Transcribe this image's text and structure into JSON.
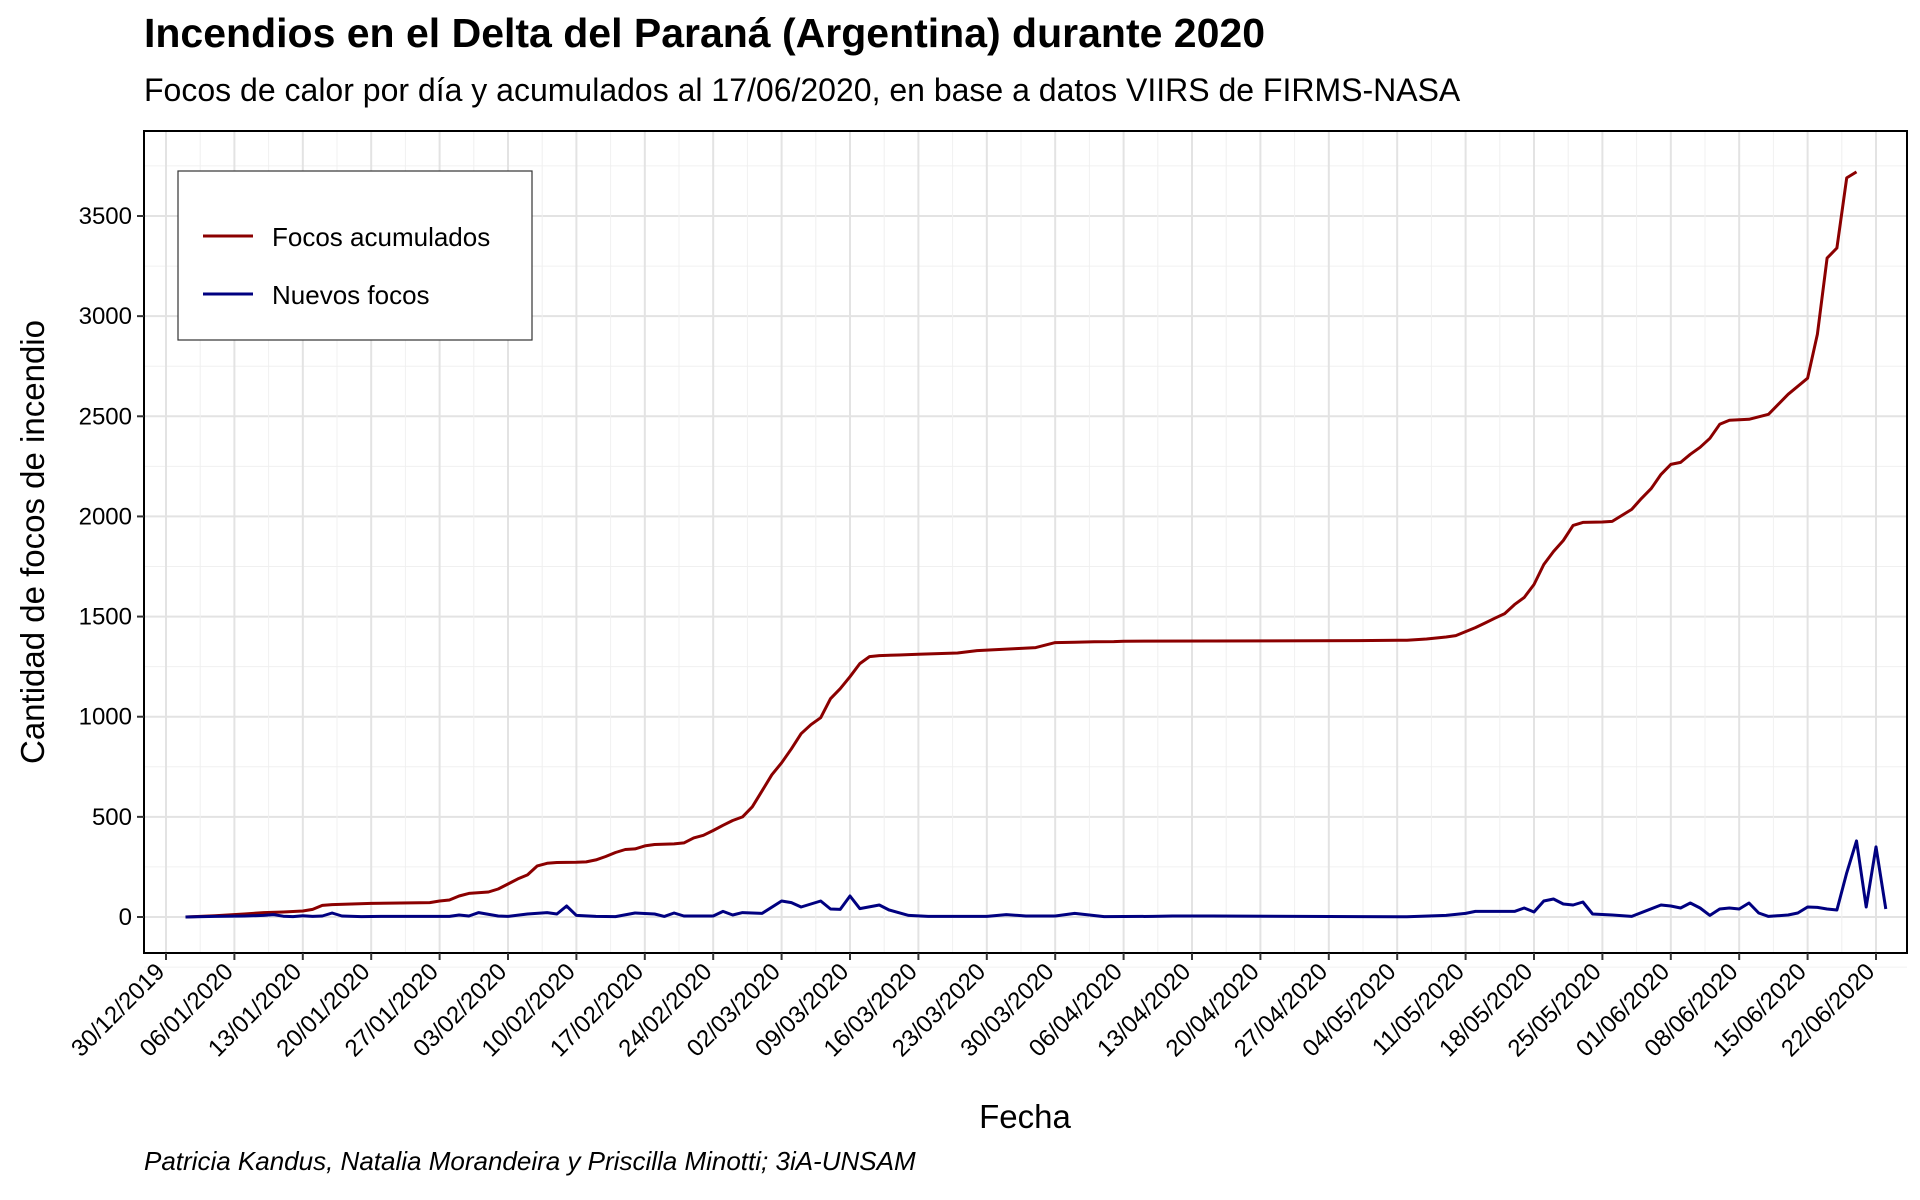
{
  "chart_data": {
    "type": "line",
    "title": "Incendios en el Delta del Paraná (Argentina) durante 2020",
    "subtitle": "Focos de calor por día y acumulados al 17/06/2020, en base a datos VIIRS de FIRMS-NASA",
    "caption": "Patricia Kandus, Natalia Morandeira y Priscilla Minotti; 3iA-UNSAM",
    "xlabel": "Fecha",
    "ylabel": "Cantidad de focos de incendio",
    "xlim": [
      "2019-12-30",
      "2020-06-22"
    ],
    "ylim": [
      -180,
      3830
    ],
    "x_ticks": [
      "30/12/2019",
      "06/01/2020",
      "13/01/2020",
      "20/01/2020",
      "27/01/2020",
      "03/02/2020",
      "10/02/2020",
      "17/02/2020",
      "24/02/2020",
      "02/03/2020",
      "09/03/2020",
      "16/03/2020",
      "23/03/2020",
      "30/03/2020",
      "06/04/2020",
      "13/04/2020",
      "20/04/2020",
      "27/04/2020",
      "04/05/2020",
      "11/05/2020",
      "18/05/2020",
      "25/05/2020",
      "01/06/2020",
      "08/06/2020",
      "15/06/2020",
      "22/06/2020"
    ],
    "y_ticks": [
      0,
      500,
      1000,
      1500,
      2000,
      2500,
      3000,
      3500
    ],
    "grid": true,
    "legend_position": "top-left",
    "series": [
      {
        "name": "Focos acumulados",
        "color": "#8b0000",
        "points": [
          [
            "2020-01-01",
            0
          ],
          [
            "2020-01-04",
            6
          ],
          [
            "2020-01-07",
            15
          ],
          [
            "2020-01-09",
            22
          ],
          [
            "2020-01-11",
            25
          ],
          [
            "2020-01-13",
            30
          ],
          [
            "2020-01-14",
            38
          ],
          [
            "2020-01-15",
            58
          ],
          [
            "2020-01-16",
            62
          ],
          [
            "2020-01-18",
            65
          ],
          [
            "2020-01-20",
            68
          ],
          [
            "2020-01-23",
            70
          ],
          [
            "2020-01-26",
            72
          ],
          [
            "2020-01-27",
            80
          ],
          [
            "2020-01-28",
            85
          ],
          [
            "2020-01-29",
            105
          ],
          [
            "2020-01-30",
            118
          ],
          [
            "2020-02-01",
            125
          ],
          [
            "2020-02-02",
            140
          ],
          [
            "2020-02-03",
            165
          ],
          [
            "2020-02-04",
            190
          ],
          [
            "2020-02-05",
            210
          ],
          [
            "2020-02-06",
            255
          ],
          [
            "2020-02-07",
            268
          ],
          [
            "2020-02-08",
            272
          ],
          [
            "2020-02-10",
            273
          ],
          [
            "2020-02-11",
            275
          ],
          [
            "2020-02-12",
            285
          ],
          [
            "2020-02-13",
            302
          ],
          [
            "2020-02-14",
            322
          ],
          [
            "2020-02-15",
            337
          ],
          [
            "2020-02-16",
            340
          ],
          [
            "2020-02-17",
            355
          ],
          [
            "2020-02-18",
            362
          ],
          [
            "2020-02-20",
            365
          ],
          [
            "2020-02-21",
            370
          ],
          [
            "2020-02-22",
            395
          ],
          [
            "2020-02-23",
            408
          ],
          [
            "2020-02-24",
            432
          ],
          [
            "2020-02-25",
            458
          ],
          [
            "2020-02-26",
            482
          ],
          [
            "2020-02-27",
            500
          ],
          [
            "2020-02-28",
            550
          ],
          [
            "2020-02-29",
            630
          ],
          [
            "2020-03-01",
            710
          ],
          [
            "2020-03-02",
            770
          ],
          [
            "2020-03-03",
            840
          ],
          [
            "2020-03-04",
            915
          ],
          [
            "2020-03-05",
            960
          ],
          [
            "2020-03-06",
            995
          ],
          [
            "2020-03-07",
            1090
          ],
          [
            "2020-03-08",
            1140
          ],
          [
            "2020-03-09",
            1200
          ],
          [
            "2020-03-10",
            1265
          ],
          [
            "2020-03-11",
            1300
          ],
          [
            "2020-03-12",
            1305
          ],
          [
            "2020-03-14",
            1308
          ],
          [
            "2020-03-16",
            1312
          ],
          [
            "2020-03-18",
            1315
          ],
          [
            "2020-03-20",
            1318
          ],
          [
            "2020-03-22",
            1330
          ],
          [
            "2020-03-24",
            1335
          ],
          [
            "2020-03-26",
            1340
          ],
          [
            "2020-03-28",
            1345
          ],
          [
            "2020-03-30",
            1370
          ],
          [
            "2020-04-01",
            1372
          ],
          [
            "2020-04-03",
            1374
          ],
          [
            "2020-04-05",
            1375
          ],
          [
            "2020-04-06",
            1377
          ],
          [
            "2020-04-15",
            1378
          ],
          [
            "2020-04-30",
            1380
          ],
          [
            "2020-05-05",
            1382
          ],
          [
            "2020-05-07",
            1388
          ],
          [
            "2020-05-09",
            1398
          ],
          [
            "2020-05-10",
            1405
          ],
          [
            "2020-05-11",
            1425
          ],
          [
            "2020-05-12",
            1445
          ],
          [
            "2020-05-13",
            1468
          ],
          [
            "2020-05-14",
            1492
          ],
          [
            "2020-05-15",
            1515
          ],
          [
            "2020-05-16",
            1560
          ],
          [
            "2020-05-17",
            1595
          ],
          [
            "2020-05-18",
            1660
          ],
          [
            "2020-05-19",
            1760
          ],
          [
            "2020-05-20",
            1825
          ],
          [
            "2020-05-21",
            1880
          ],
          [
            "2020-05-22",
            1955
          ],
          [
            "2020-05-23",
            1970
          ],
          [
            "2020-05-25",
            1972
          ],
          [
            "2020-05-26",
            1975
          ],
          [
            "2020-05-28",
            2035
          ],
          [
            "2020-05-29",
            2090
          ],
          [
            "2020-05-30",
            2140
          ],
          [
            "2020-05-31",
            2210
          ],
          [
            "2020-06-01",
            2260
          ],
          [
            "2020-06-02",
            2270
          ],
          [
            "2020-06-03",
            2310
          ],
          [
            "2020-06-04",
            2345
          ],
          [
            "2020-06-05",
            2390
          ],
          [
            "2020-06-06",
            2460
          ],
          [
            "2020-06-07",
            2480
          ],
          [
            "2020-06-09",
            2485
          ],
          [
            "2020-06-11",
            2510
          ],
          [
            "2020-06-12",
            2560
          ],
          [
            "2020-06-13",
            2610
          ],
          [
            "2020-06-15",
            2690
          ],
          [
            "2020-06-16",
            2910
          ],
          [
            "2020-06-17",
            3290
          ],
          [
            "2020-06-18",
            3340
          ],
          [
            "2020-06-19",
            3690
          ],
          [
            "2020-06-20",
            3720
          ]
        ]
      },
      {
        "name": "Nuevos focos",
        "color": "#000080",
        "points": [
          [
            "2020-01-01",
            0
          ],
          [
            "2020-01-04",
            3
          ],
          [
            "2020-01-07",
            5
          ],
          [
            "2020-01-09",
            8
          ],
          [
            "2020-01-10",
            12
          ],
          [
            "2020-01-11",
            4
          ],
          [
            "2020-01-12",
            2
          ],
          [
            "2020-01-13",
            6
          ],
          [
            "2020-01-14",
            3
          ],
          [
            "2020-01-15",
            5
          ],
          [
            "2020-01-16",
            20
          ],
          [
            "2020-01-17",
            5
          ],
          [
            "2020-01-19",
            2
          ],
          [
            "2020-01-21",
            3
          ],
          [
            "2020-01-25",
            3
          ],
          [
            "2020-01-28",
            3
          ],
          [
            "2020-01-29",
            10
          ],
          [
            "2020-01-30",
            5
          ],
          [
            "2020-01-31",
            22
          ],
          [
            "2020-02-02",
            5
          ],
          [
            "2020-02-03",
            3
          ],
          [
            "2020-02-05",
            15
          ],
          [
            "2020-02-07",
            22
          ],
          [
            "2020-02-08",
            15
          ],
          [
            "2020-02-09",
            55
          ],
          [
            "2020-02-10",
            8
          ],
          [
            "2020-02-12",
            3
          ],
          [
            "2020-02-14",
            2
          ],
          [
            "2020-02-16",
            20
          ],
          [
            "2020-02-18",
            15
          ],
          [
            "2020-02-19",
            3
          ],
          [
            "2020-02-20",
            20
          ],
          [
            "2020-02-21",
            5
          ],
          [
            "2020-02-24",
            5
          ],
          [
            "2020-02-25",
            28
          ],
          [
            "2020-02-26",
            10
          ],
          [
            "2020-02-27",
            22
          ],
          [
            "2020-02-29",
            18
          ],
          [
            "2020-03-02",
            80
          ],
          [
            "2020-03-03",
            72
          ],
          [
            "2020-03-04",
            50
          ],
          [
            "2020-03-06",
            80
          ],
          [
            "2020-03-07",
            40
          ],
          [
            "2020-03-08",
            38
          ],
          [
            "2020-03-09",
            105
          ],
          [
            "2020-03-10",
            42
          ],
          [
            "2020-03-12",
            60
          ],
          [
            "2020-03-13",
            35
          ],
          [
            "2020-03-15",
            8
          ],
          [
            "2020-03-17",
            3
          ],
          [
            "2020-03-21",
            3
          ],
          [
            "2020-03-23",
            3
          ],
          [
            "2020-03-25",
            12
          ],
          [
            "2020-03-27",
            5
          ],
          [
            "2020-03-28",
            5
          ],
          [
            "2020-03-30",
            5
          ],
          [
            "2020-04-01",
            18
          ],
          [
            "2020-04-04",
            2
          ],
          [
            "2020-04-09",
            3
          ],
          [
            "2020-04-11",
            5
          ],
          [
            "2020-04-15",
            5
          ],
          [
            "2020-04-30",
            2
          ],
          [
            "2020-05-05",
            1
          ],
          [
            "2020-05-09",
            8
          ],
          [
            "2020-05-11",
            18
          ],
          [
            "2020-05-12",
            28
          ],
          [
            "2020-05-14",
            28
          ],
          [
            "2020-05-16",
            28
          ],
          [
            "2020-05-17",
            45
          ],
          [
            "2020-05-18",
            25
          ],
          [
            "2020-05-19",
            80
          ],
          [
            "2020-05-20",
            90
          ],
          [
            "2020-05-21",
            65
          ],
          [
            "2020-05-22",
            60
          ],
          [
            "2020-05-23",
            75
          ],
          [
            "2020-05-24",
            15
          ],
          [
            "2020-05-26",
            10
          ],
          [
            "2020-05-28",
            3
          ],
          [
            "2020-05-31",
            60
          ],
          [
            "2020-06-01",
            55
          ],
          [
            "2020-06-02",
            45
          ],
          [
            "2020-06-03",
            70
          ],
          [
            "2020-06-04",
            45
          ],
          [
            "2020-06-05",
            8
          ],
          [
            "2020-06-06",
            40
          ],
          [
            "2020-06-07",
            45
          ],
          [
            "2020-06-08",
            40
          ],
          [
            "2020-06-09",
            70
          ],
          [
            "2020-06-10",
            20
          ],
          [
            "2020-06-11",
            3
          ],
          [
            "2020-06-13",
            10
          ],
          [
            "2020-06-14",
            20
          ],
          [
            "2020-06-15",
            50
          ],
          [
            "2020-06-16",
            48
          ],
          [
            "2020-06-17",
            40
          ],
          [
            "2020-06-18",
            35
          ],
          [
            "2020-06-19",
            220
          ],
          [
            "2020-06-20",
            380
          ],
          [
            "2020-06-21",
            50
          ],
          [
            "2020-06-22",
            350
          ],
          [
            "2020-06-23",
            40
          ]
        ]
      }
    ]
  }
}
